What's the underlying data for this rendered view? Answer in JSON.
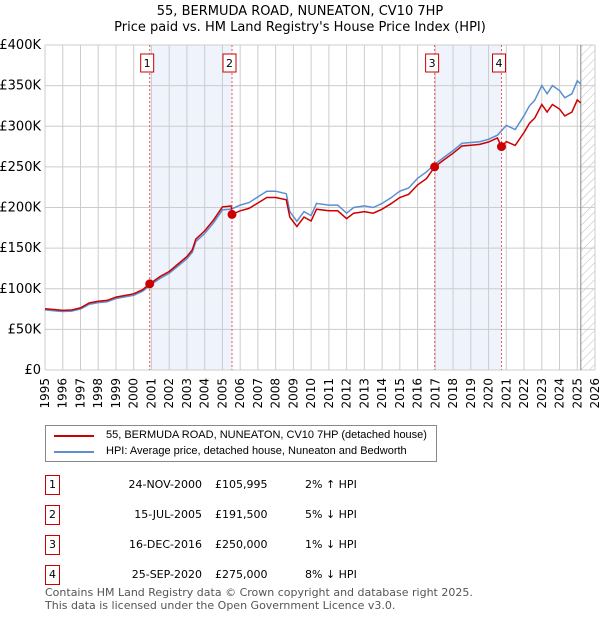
{
  "header": {
    "title": "55, BERMUDA ROAD, NUNEATON, CV10 7HP",
    "subtitle": "Price paid vs. HM Land Registry's House Price Index (HPI)"
  },
  "chart_data": {
    "type": "line",
    "title": "55, BERMUDA ROAD, NUNEATON, CV10 7HP",
    "subtitle": "Price paid vs. HM Land Registry's House Price Index (HPI)",
    "xlim": [
      1995,
      2026
    ],
    "ylim": [
      0,
      400000
    ],
    "y_ticks": [
      {
        "v": 0,
        "label": "£0"
      },
      {
        "v": 50000,
        "label": "£50K"
      },
      {
        "v": 100000,
        "label": "£100K"
      },
      {
        "v": 150000,
        "label": "£150K"
      },
      {
        "v": 200000,
        "label": "£200K"
      },
      {
        "v": 250000,
        "label": "£250K"
      },
      {
        "v": 300000,
        "label": "£300K"
      },
      {
        "v": 350000,
        "label": "£350K"
      },
      {
        "v": 400000,
        "label": "£400K"
      }
    ],
    "x_ticks": [
      "1995",
      "1996",
      "1997",
      "1998",
      "1999",
      "2000",
      "2001",
      "2002",
      "2003",
      "2004",
      "2005",
      "2006",
      "2007",
      "2008",
      "2009",
      "2010",
      "2011",
      "2012",
      "2013",
      "2014",
      "2015",
      "2016",
      "2017",
      "2018",
      "2019",
      "2020",
      "2021",
      "2022",
      "2023",
      "2024",
      "2025",
      "2026"
    ],
    "grid": true,
    "forecast_hatch_from": 2025.2,
    "series": [
      {
        "name": "55, BERMUDA ROAD, NUNEATON, CV10 7HP (detached house)",
        "color": "#cc0000"
      },
      {
        "name": "HPI: Average price, detached house, Nuneaton and Bedworth",
        "color": "#5b8fd0",
        "points": [
          [
            1995,
            74000
          ],
          [
            1995.5,
            73000
          ],
          [
            1996,
            72000
          ],
          [
            1996.5,
            72500
          ],
          [
            1997,
            75000
          ],
          [
            1997.5,
            81000
          ],
          [
            1998,
            83000
          ],
          [
            1998.5,
            84000
          ],
          [
            1999,
            88000
          ],
          [
            1999.5,
            90000
          ],
          [
            2000,
            92000
          ],
          [
            2000.5,
            97000
          ],
          [
            2000.9,
            104000
          ],
          [
            2001.5,
            113000
          ],
          [
            2002,
            119000
          ],
          [
            2002.5,
            128000
          ],
          [
            2003,
            137000
          ],
          [
            2003.3,
            145000
          ],
          [
            2003.5,
            158000
          ],
          [
            2004,
            168000
          ],
          [
            2004.5,
            181000
          ],
          [
            2005,
            197000
          ],
          [
            2005.5,
            198000
          ],
          [
            2006,
            203000
          ],
          [
            2006.5,
            206000
          ],
          [
            2007,
            213000
          ],
          [
            2007.5,
            220000
          ],
          [
            2008,
            220000
          ],
          [
            2008.6,
            217000
          ],
          [
            2008.8,
            195000
          ],
          [
            2009.2,
            183000
          ],
          [
            2009.6,
            195000
          ],
          [
            2010,
            190000
          ],
          [
            2010.3,
            205000
          ],
          [
            2011,
            203000
          ],
          [
            2011.5,
            203000
          ],
          [
            2012,
            193000
          ],
          [
            2012.4,
            200000
          ],
          [
            2013,
            202000
          ],
          [
            2013.5,
            200000
          ],
          [
            2014,
            205000
          ],
          [
            2014.5,
            212000
          ],
          [
            2015,
            220000
          ],
          [
            2015.5,
            224000
          ],
          [
            2016,
            236000
          ],
          [
            2016.5,
            244000
          ],
          [
            2016.96,
            253000
          ],
          [
            2017.5,
            262000
          ],
          [
            2018,
            270000
          ],
          [
            2018.5,
            279000
          ],
          [
            2019,
            280000
          ],
          [
            2019.5,
            281000
          ],
          [
            2020,
            284000
          ],
          [
            2020.5,
            289000
          ],
          [
            2021,
            301000
          ],
          [
            2021.5,
            296000
          ],
          [
            2022,
            313000
          ],
          [
            2022.3,
            325000
          ],
          [
            2022.6,
            332000
          ],
          [
            2023,
            350000
          ],
          [
            2023.3,
            340000
          ],
          [
            2023.6,
            350000
          ],
          [
            2024,
            344000
          ],
          [
            2024.3,
            335000
          ],
          [
            2024.7,
            340000
          ],
          [
            2025,
            356000
          ],
          [
            2025.2,
            352000
          ]
        ]
      }
    ],
    "sales": [
      {
        "id": "1",
        "x": 2000.9,
        "price": 105995,
        "date": "24-NOV-2000",
        "price_label": "£105,995",
        "hpi_label": "2% ↑ HPI"
      },
      {
        "id": "2",
        "x": 2005.54,
        "price": 191500,
        "date": "15-JUL-2005",
        "price_label": "£191,500",
        "hpi_label": "5% ↓ HPI"
      },
      {
        "id": "3",
        "x": 2016.96,
        "price": 250000,
        "date": "16-DEC-2016",
        "price_label": "£250,000",
        "hpi_label": "1% ↓ HPI"
      },
      {
        "id": "4",
        "x": 2020.73,
        "price": 275000,
        "date": "25-SEP-2020",
        "price_label": "£275,000",
        "hpi_label": "8% ↓ HPI"
      }
    ],
    "shaded_ranges": [
      [
        "1",
        "2"
      ],
      [
        "3",
        "4"
      ]
    ]
  },
  "legend": {
    "red": "55, BERMUDA ROAD, NUNEATON, CV10 7HP (detached house)",
    "blue": "HPI: Average price, detached house, Nuneaton and Bedworth"
  },
  "footer": {
    "line1": "Contains HM Land Registry data © Crown copyright and database right 2025.",
    "line2": "This data is licensed under the Open Government Licence v3.0."
  }
}
